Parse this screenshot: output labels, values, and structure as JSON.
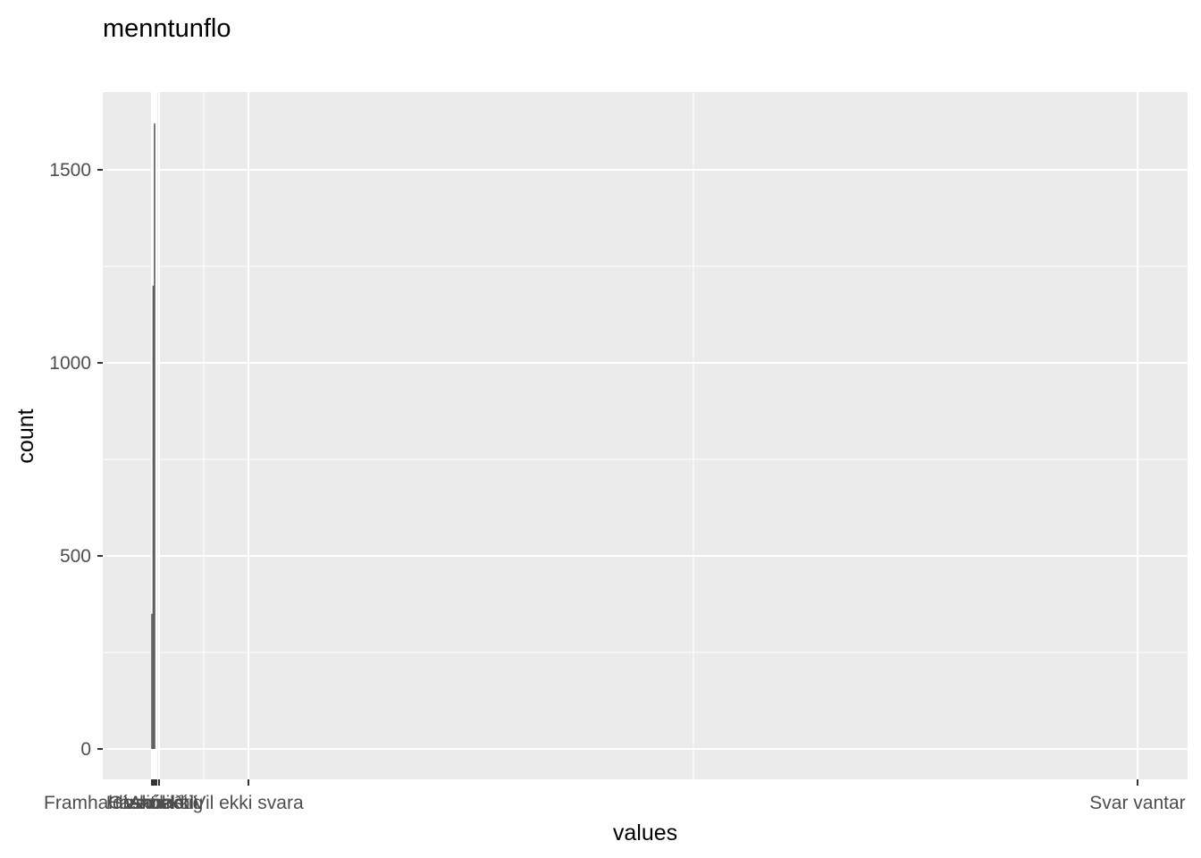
{
  "chart_data": {
    "type": "bar",
    "title": "menntunflo",
    "xlabel": "values",
    "ylabel": "count",
    "ylim": [
      0,
      1620
    ],
    "y_ticks": [
      0,
      500,
      1000,
      1500
    ],
    "x_ticks": [
      "Framhaldsskóli",
      "Grunnskóli",
      "Háskólastig",
      "Annað",
      "Veit ekki",
      "Vil ekki svara",
      "Svar vantar"
    ],
    "categories": [
      "Framhaldsskóli",
      "Grunnskóli",
      "Háskólastig",
      "Annað",
      "Veit ekki",
      "Vil ekki svara",
      "Svar vantar"
    ],
    "values": [
      350,
      1200,
      1620,
      0,
      0,
      0,
      0
    ],
    "background": "#ebebeb",
    "bar_color": "#595959",
    "grid": true,
    "legend": "none"
  }
}
